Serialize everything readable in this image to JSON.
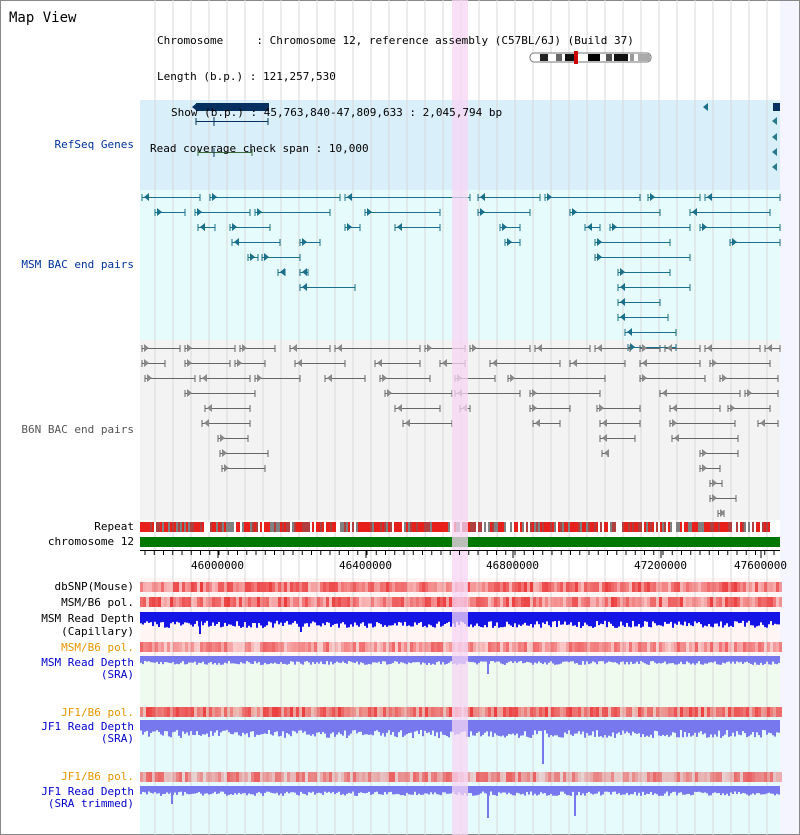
{
  "title": "Map View",
  "info": {
    "chromosome_key": "Chromosome",
    "chromosome_val": "Chromosome 12, reference assembly (C57BL/6J) (Build 37)",
    "length_key": "Length (b.p.)",
    "length_val": "121,257,530",
    "show_key": "Show (b.p.)",
    "show_val": "45,763,840-47,809,633 : 2,045,794 bp",
    "span_key": "Read coverage check span",
    "span_val": "10,000"
  },
  "tracks": {
    "refseq": "RefSeq Genes",
    "msm_bac": "MSM BAC end pairs",
    "b6n_bac": "B6N BAC end pairs",
    "repeat": "Repeat",
    "chromosome": "chromosome 12",
    "dbsnp": "dbSNP(Mouse)",
    "msm_b6_pol_1": "MSM/B6 pol.",
    "msm_depth_cap_1": "MSM Read Depth",
    "msm_depth_cap_2": "(Capillary)",
    "msm_b6_pol_2": "MSM/B6 pol.",
    "msm_depth_sra_1": "MSM Read Depth",
    "msm_depth_sra_2": "(SRA)",
    "jf1_b6_pol_1": "JF1/B6 pol.",
    "jf1_depth_sra_1": "JF1 Read Depth",
    "jf1_depth_sra_2": "(SRA)",
    "jf1_b6_pol_2": "JF1/B6 pol.",
    "jf1_depth_trim_1": "JF1 Read Depth",
    "jf1_depth_trim_2": "(SRA trimmed)"
  },
  "axis": {
    "ticks": [
      "46000000",
      "46400000",
      "46800000",
      "47200000",
      "47600000"
    ]
  },
  "colors": {
    "refseq_bg": "#d9effa",
    "bac_bg": "#e6fbfb",
    "gray_bg": "#f3f3f3",
    "highlight": "#f7d6f4",
    "msm_feature": "#1a6f8a",
    "b6n_feature": "#666666",
    "chromosome_bar": "#007700",
    "depth_cap": "#1414e6",
    "depth_sra": "#7777ee",
    "pol": "#f08080"
  }
}
